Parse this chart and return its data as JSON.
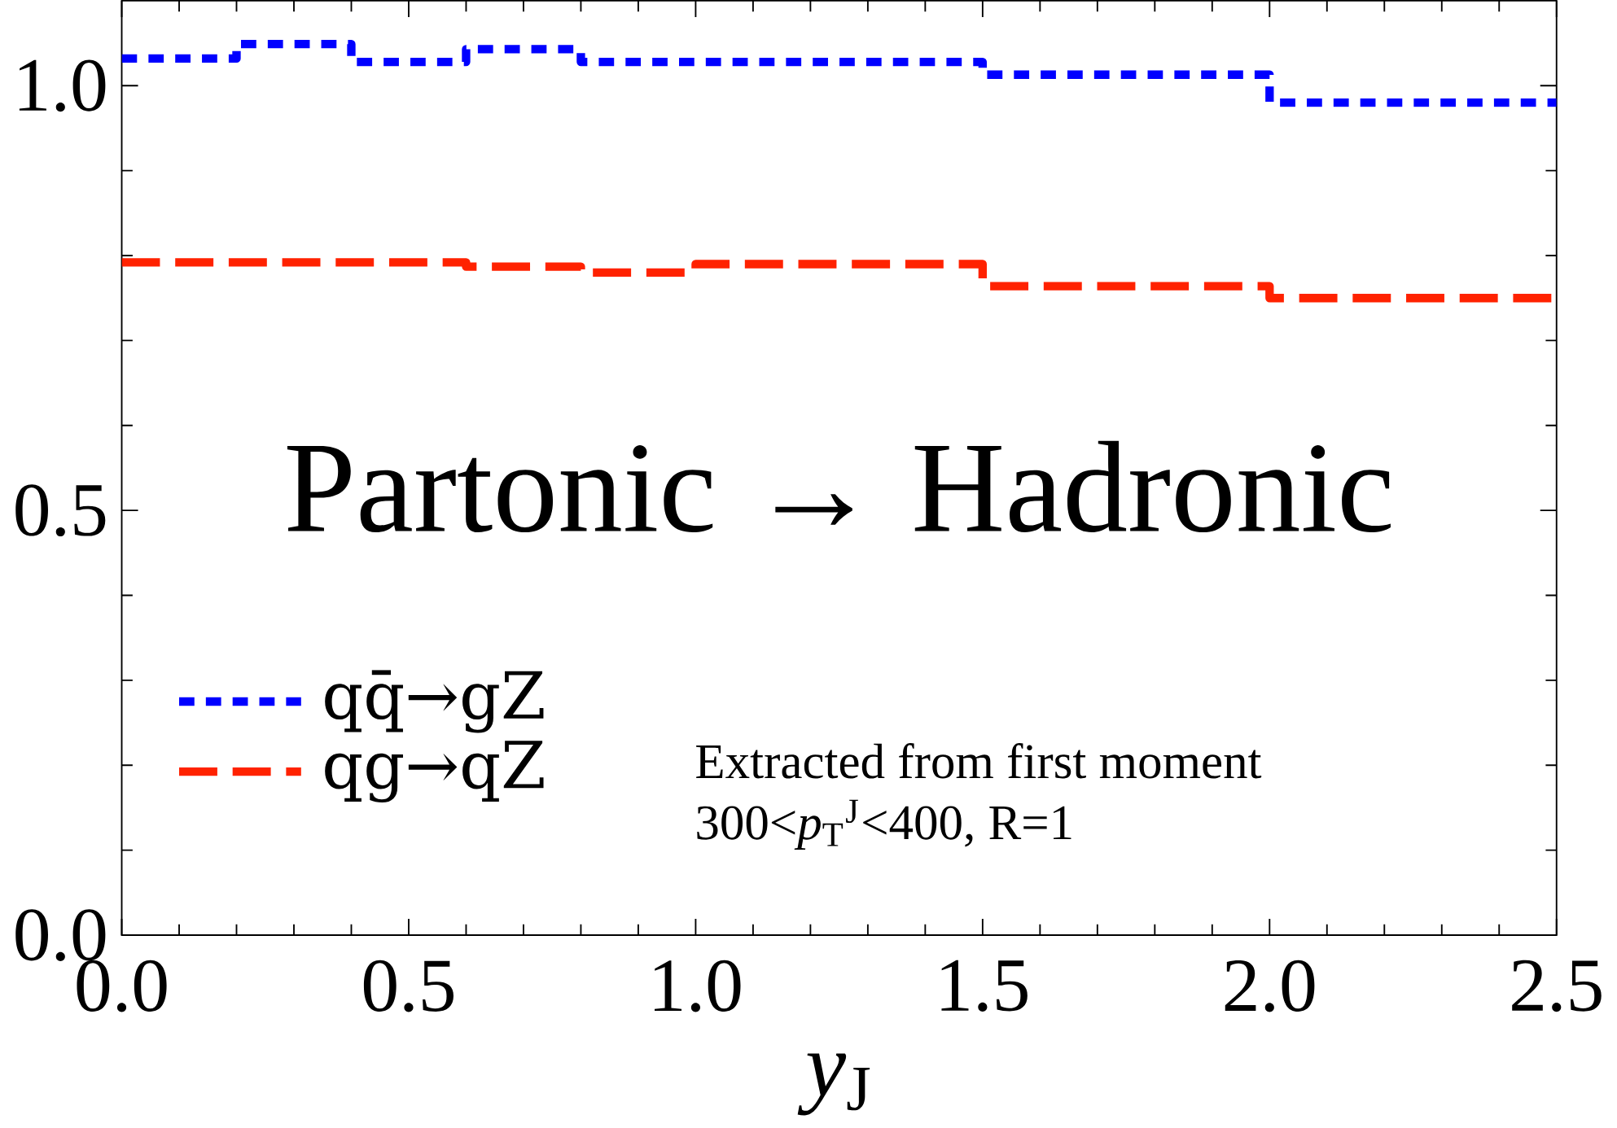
{
  "chart_data": {
    "type": "step",
    "xlabel": "*y*$_{J}$",
    "x": [
      0,
      0.2,
      0.4,
      0.6,
      0.8,
      1.0,
      1.5,
      2.0,
      2.5
    ],
    "series": [
      {
        "name": "qq̄→gZ",
        "color": "#0000ff",
        "line_style": "dotted",
        "values": [
          1.032,
          1.049,
          1.028,
          1.043,
          1.028,
          1.028,
          1.013,
          0.98,
          0.98
        ]
      },
      {
        "name": "qg→qZ",
        "color": "#ff2200",
        "line_style": "dashed",
        "values": [
          0.792,
          0.792,
          0.792,
          0.787,
          0.78,
          0.79,
          0.764,
          0.75,
          0.75
        ]
      }
    ],
    "xlim": [
      0,
      2.5
    ],
    "ylim": [
      0,
      1.1
    ],
    "xticks": [
      {
        "value": 0,
        "label": "0.0"
      },
      0.5,
      {
        "value": 1,
        "label": "1.0"
      },
      1.5,
      {
        "value": 2,
        "label": "2.0"
      },
      2.5
    ],
    "yticks": [
      {
        "value": 0,
        "label": "0.0"
      },
      0.5,
      {
        "value": 1,
        "label": "1.0"
      }
    ],
    "legend": "bottom left",
    "grid": false,
    "annotations": [
      "Partonic → Hadronic",
      "Extracted from first moment",
      "300<*p*$_{T}$$^{J}$<400, R=1"
    ]
  }
}
